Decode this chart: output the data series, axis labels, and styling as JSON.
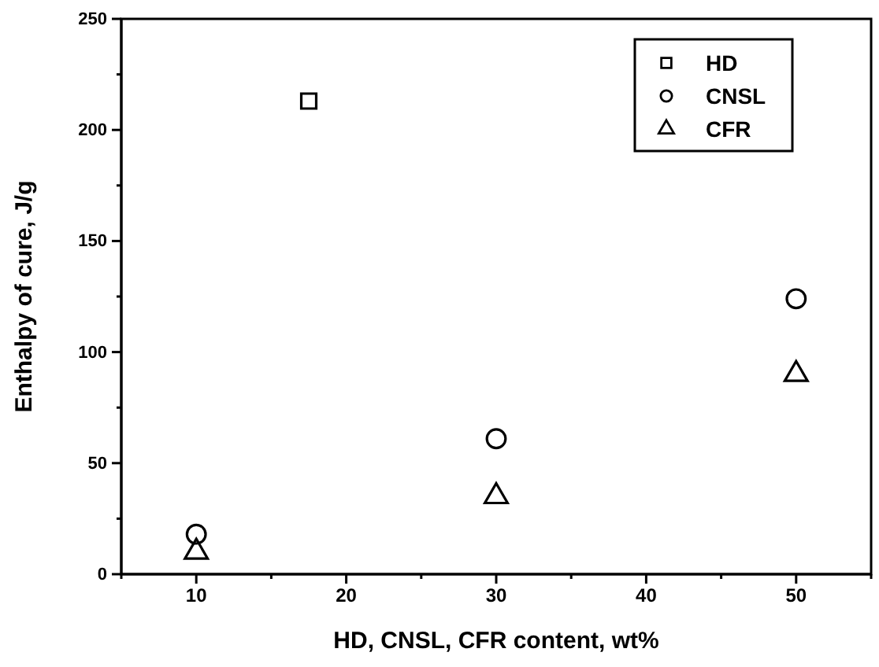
{
  "chart_data": {
    "type": "scatter",
    "xlabel": "HD, CNSL, CFR content, wt%",
    "ylabel": "Enthalpy of cure, J/g",
    "xlim": [
      5,
      55
    ],
    "xticks": [
      {
        "value": 5,
        "label": null
      },
      10,
      {
        "value": 15,
        "label": null
      },
      20,
      {
        "value": 25,
        "label": null
      },
      30,
      {
        "value": 35,
        "label": null
      },
      40,
      {
        "value": 45,
        "label": null
      },
      50,
      {
        "value": 55,
        "label": null
      }
    ],
    "ylim": [
      0,
      250
    ],
    "yticks": [
      0,
      {
        "value": 25,
        "label": null
      },
      50,
      {
        "value": 75,
        "label": null
      },
      100,
      {
        "value": 125,
        "label": null
      },
      150,
      {
        "value": 175,
        "label": null
      },
      200,
      {
        "value": 225,
        "label": null
      },
      250
    ],
    "legend": "top right",
    "grid": false,
    "series": [
      {
        "name": "HD",
        "color": "#000000",
        "marker": "square",
        "x": [
          17.5
        ],
        "values": [
          213
        ]
      },
      {
        "name": "CNSL",
        "color": "#000000",
        "marker": "circle",
        "x": [
          10,
          30,
          50
        ],
        "values": [
          18,
          61,
          124
        ]
      },
      {
        "name": "CFR",
        "color": "#000000",
        "marker": "triangle",
        "x": [
          10,
          30,
          50
        ],
        "values": [
          10,
          35,
          90
        ]
      }
    ]
  }
}
